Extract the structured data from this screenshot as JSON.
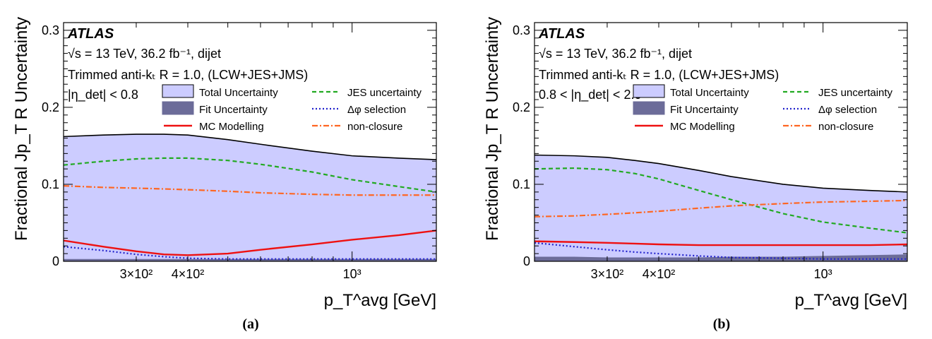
{
  "chart_data": [
    {
      "id": "a",
      "type": "area",
      "panel_label": "(a)",
      "experiment": "ATLAS",
      "text_lines": [
        "√s = 13 TeV,  36.2 fb⁻¹, dijet",
        "Trimmed anti-kₜ R = 1.0, (LCW+JES+JMS)",
        "|η_det| < 0.8"
      ],
      "xlabel": "p_T^avg [GeV]",
      "ylabel": "Fractional Jp_T R Uncertainty",
      "xscale": "log",
      "xlim": [
        200,
        1600
      ],
      "ylim": [
        0,
        0.31
      ],
      "xticks": [
        {
          "value": 300,
          "label": "3×10²"
        },
        {
          "value": 400,
          "label": "4×10²"
        },
        {
          "value": 1000,
          "label": "10³"
        }
      ],
      "yticks": [
        {
          "value": 0,
          "label": "0"
        },
        {
          "value": 0.1,
          "label": "0.1"
        },
        {
          "value": 0.2,
          "label": "0.2"
        },
        {
          "value": 0.3,
          "label": "0.3"
        }
      ],
      "legend_placement": "upper-right",
      "x": [
        200,
        250,
        300,
        350,
        400,
        500,
        600,
        800,
        1000,
        1300,
        1600
      ],
      "series": [
        {
          "name": "Total Uncertainty",
          "style": "fill",
          "color": "#ccccff",
          "values": [
            0.162,
            0.164,
            0.165,
            0.165,
            0.164,
            0.158,
            0.152,
            0.143,
            0.137,
            0.134,
            0.132
          ]
        },
        {
          "name": "Fit Uncertainty",
          "style": "fill",
          "color": "#6c6c99",
          "values": [
            0.003,
            0.003,
            0.003,
            0.003,
            0.003,
            0.003,
            0.003,
            0.003,
            0.003,
            0.003,
            0.003
          ]
        },
        {
          "name": "MC Modelling",
          "style": "solid",
          "color": "#ee1111",
          "values": [
            0.027,
            0.019,
            0.013,
            0.009,
            0.008,
            0.01,
            0.015,
            0.022,
            0.028,
            0.034,
            0.04
          ]
        },
        {
          "name": "JES uncertainty",
          "style": "dashed",
          "color": "#22aa22",
          "values": [
            0.125,
            0.13,
            0.133,
            0.134,
            0.134,
            0.131,
            0.126,
            0.116,
            0.106,
            0.097,
            0.09
          ]
        },
        {
          "name": "Δφ selection",
          "style": "dotted",
          "color": "#2222cc",
          "values": [
            0.019,
            0.014,
            0.009,
            0.006,
            0.004,
            0.003,
            0.003,
            0.003,
            0.003,
            0.003,
            0.003
          ]
        },
        {
          "name": "non-closure",
          "style": "dashdot",
          "color": "#ff6622",
          "values": [
            0.098,
            0.096,
            0.095,
            0.094,
            0.093,
            0.091,
            0.089,
            0.087,
            0.086,
            0.086,
            0.086
          ]
        }
      ]
    },
    {
      "id": "b",
      "type": "area",
      "panel_label": "(b)",
      "experiment": "ATLAS",
      "text_lines": [
        "√s = 13 TeV,  36.2 fb⁻¹, dijet",
        "Trimmed anti-kₜ R = 1.0, (LCW+JES+JMS)",
        "0.8 < |η_det| < 2.0"
      ],
      "xlabel": "p_T^avg [GeV]",
      "ylabel": "Fractional Jp_T R Uncertainty",
      "xscale": "log",
      "xlim": [
        200,
        1600
      ],
      "ylim": [
        0,
        0.31
      ],
      "xticks": [
        {
          "value": 300,
          "label": "3×10²"
        },
        {
          "value": 400,
          "label": "4×10²"
        },
        {
          "value": 1000,
          "label": "10³"
        }
      ],
      "yticks": [
        {
          "value": 0,
          "label": "0"
        },
        {
          "value": 0.1,
          "label": "0.1"
        },
        {
          "value": 0.2,
          "label": "0.2"
        },
        {
          "value": 0.3,
          "label": "0.3"
        }
      ],
      "legend_placement": "upper-right",
      "x": [
        200,
        250,
        300,
        350,
        400,
        500,
        600,
        800,
        1000,
        1300,
        1600
      ],
      "series": [
        {
          "name": "Total Uncertainty",
          "style": "fill",
          "color": "#ccccff",
          "values": [
            0.138,
            0.137,
            0.135,
            0.131,
            0.127,
            0.118,
            0.11,
            0.1,
            0.095,
            0.092,
            0.09
          ]
        },
        {
          "name": "Fit Uncertainty",
          "style": "fill",
          "color": "#6c6c99",
          "values": [
            0.006,
            0.006,
            0.005,
            0.005,
            0.005,
            0.005,
            0.006,
            0.006,
            0.007,
            0.008,
            0.009
          ]
        },
        {
          "name": "MC Modelling",
          "style": "solid",
          "color": "#ee1111",
          "values": [
            0.026,
            0.025,
            0.024,
            0.023,
            0.022,
            0.021,
            0.021,
            0.021,
            0.021,
            0.021,
            0.022
          ]
        },
        {
          "name": "JES uncertainty",
          "style": "dashed",
          "color": "#22aa22",
          "values": [
            0.12,
            0.121,
            0.119,
            0.114,
            0.107,
            0.092,
            0.08,
            0.062,
            0.051,
            0.043,
            0.037
          ]
        },
        {
          "name": "Δφ selection",
          "style": "dotted",
          "color": "#2222cc",
          "values": [
            0.024,
            0.019,
            0.015,
            0.012,
            0.01,
            0.007,
            0.005,
            0.004,
            0.003,
            0.003,
            0.003
          ]
        },
        {
          "name": "non-closure",
          "style": "dashdot",
          "color": "#ff6622",
          "values": [
            0.058,
            0.059,
            0.061,
            0.063,
            0.065,
            0.069,
            0.072,
            0.075,
            0.077,
            0.078,
            0.079
          ]
        }
      ]
    }
  ]
}
